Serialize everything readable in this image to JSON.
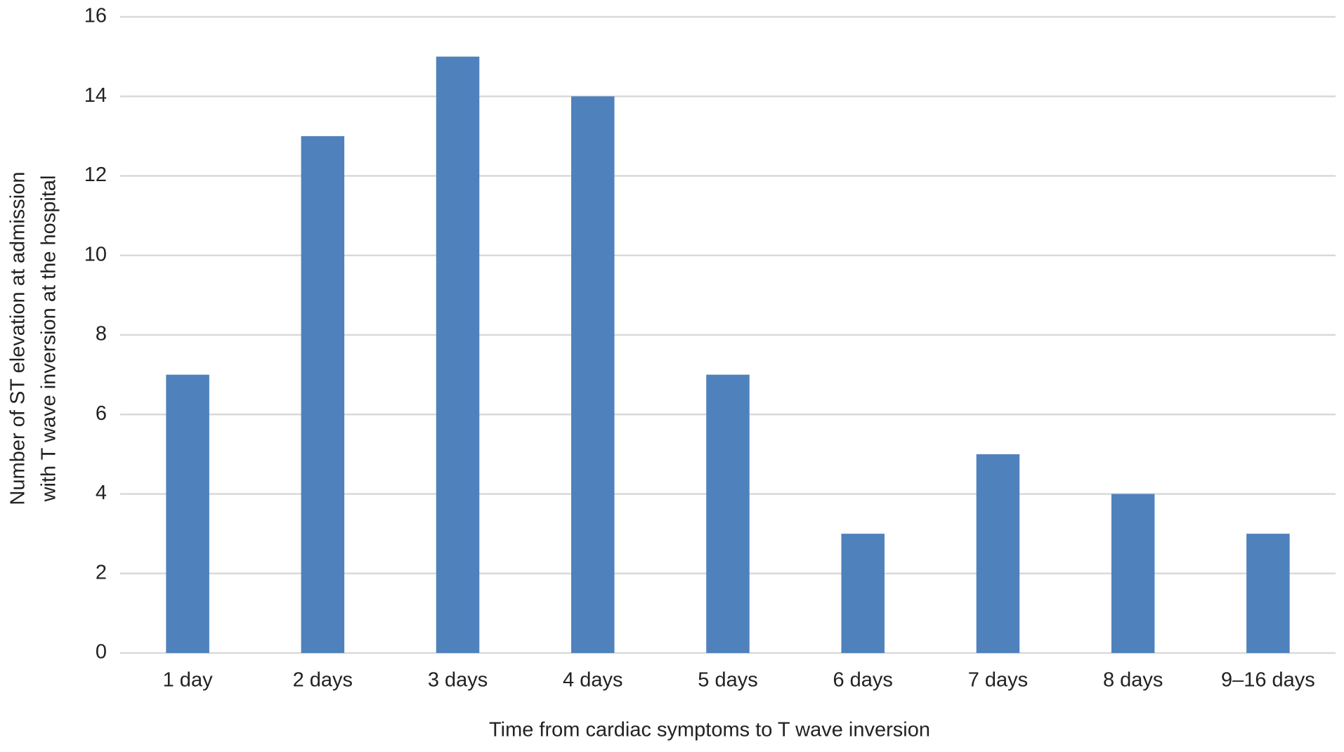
{
  "chart_data": {
    "type": "bar",
    "xlabel": "Time from cardiac symptoms to T wave inversion",
    "ylabel": [
      "Number of ST elevation at admission",
      "with T wave inversion at the hospital"
    ],
    "categories": [
      "1 day",
      "2 days",
      "3 days",
      "4 days",
      "5 days",
      "6 days",
      "7 days",
      "8 days",
      "9–16 days"
    ],
    "values": [
      7,
      13,
      15,
      14,
      7,
      3,
      5,
      4,
      3
    ],
    "color": "#4f81bd",
    "ylim": [
      0,
      16
    ],
    "yticks": [
      0,
      2,
      4,
      6,
      8,
      10,
      12,
      14,
      16
    ],
    "grid": true
  }
}
